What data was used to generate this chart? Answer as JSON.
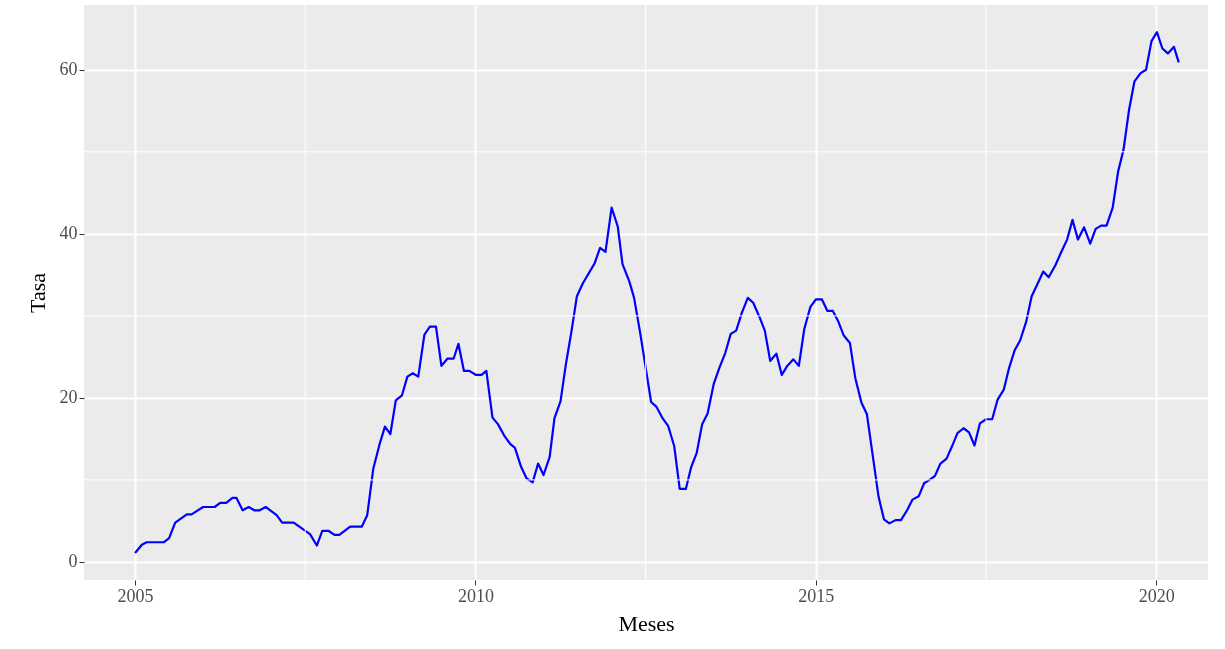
{
  "chart_data": {
    "type": "line",
    "xlabel": "Meses",
    "ylabel": "Tasa",
    "xlim": [
      2004.25,
      2020.76
    ],
    "ylim": [
      -2.2,
      67.9
    ],
    "xticks": [
      2005,
      2010,
      2015,
      2020
    ],
    "yticks": [
      0,
      20,
      40,
      60
    ],
    "grid": true,
    "line_style": "solid",
    "marker": "none",
    "series": [
      {
        "color": "#0000ff",
        "x": [
          2005.0,
          2005.1,
          2005.17,
          2005.42,
          2005.5,
          2005.59,
          2005.76,
          2005.83,
          2006.0,
          2006.17,
          2006.25,
          2006.34,
          2006.43,
          2006.49,
          2006.58,
          2006.67,
          2006.75,
          2006.83,
          2006.92,
          2007.08,
          2007.16,
          2007.33,
          2007.57,
          2007.67,
          2007.75,
          2007.84,
          2007.93,
          2008.0,
          2008.16,
          2008.33,
          2008.41,
          2008.5,
          2008.59,
          2008.67,
          2008.75,
          2008.83,
          2008.92,
          2009.0,
          2009.08,
          2009.16,
          2009.25,
          2009.33,
          2009.42,
          2009.5,
          2009.59,
          2009.68,
          2009.75,
          2009.83,
          2009.91,
          2010.01,
          2010.09,
          2010.16,
          2010.25,
          2010.33,
          2010.43,
          2010.51,
          2010.58,
          2010.67,
          2010.75,
          2010.84,
          2010.92,
          2011.0,
          2011.09,
          2011.16,
          2011.25,
          2011.33,
          2011.41,
          2011.49,
          2011.58,
          2011.75,
          2011.83,
          2011.91,
          2012.0,
          2012.09,
          2012.16,
          2012.26,
          2012.33,
          2012.42,
          2012.58,
          2012.66,
          2012.75,
          2012.83,
          2012.92,
          2013.0,
          2013.09,
          2013.17,
          2013.25,
          2013.33,
          2013.41,
          2013.5,
          2013.58,
          2013.67,
          2013.75,
          2013.83,
          2013.91,
          2014.0,
          2014.08,
          2014.17,
          2014.25,
          2014.33,
          2014.42,
          2014.5,
          2014.58,
          2014.67,
          2014.75,
          2014.83,
          2014.92,
          2015.0,
          2015.09,
          2015.17,
          2015.25,
          2015.33,
          2015.41,
          2015.5,
          2015.58,
          2015.67,
          2015.75,
          2015.83,
          2015.92,
          2016.0,
          2016.08,
          2016.17,
          2016.25,
          2016.34,
          2016.42,
          2016.51,
          2016.59,
          2016.67,
          2016.75,
          2016.83,
          2016.92,
          2017.0,
          2017.08,
          2017.17,
          2017.25,
          2017.33,
          2017.41,
          2017.5,
          2017.59,
          2017.67,
          2017.76,
          2017.84,
          2017.92,
          2018.0,
          2018.09,
          2018.17,
          2018.25,
          2018.34,
          2018.42,
          2018.52,
          2018.6,
          2018.69,
          2018.77,
          2018.85,
          2018.94,
          2019.03,
          2019.11,
          2019.19,
          2019.27,
          2019.36,
          2019.44,
          2019.52,
          2019.6,
          2019.68,
          2019.77,
          2019.85,
          2019.93,
          2020.01,
          2020.09,
          2020.17,
          2020.26,
          2020.33
        ],
        "values": [
          1.1,
          2.1,
          2.4,
          2.4,
          2.9,
          4.8,
          5.8,
          5.8,
          6.7,
          6.7,
          7.2,
          7.2,
          7.8,
          7.8,
          6.3,
          6.7,
          6.3,
          6.3,
          6.7,
          5.7,
          4.8,
          4.8,
          3.4,
          2.0,
          3.8,
          3.8,
          3.3,
          3.3,
          4.3,
          4.3,
          5.7,
          11.4,
          14.3,
          16.5,
          15.6,
          19.7,
          20.3,
          22.6,
          23.0,
          22.6,
          27.7,
          28.7,
          28.7,
          23.9,
          24.8,
          24.8,
          26.6,
          23.3,
          23.3,
          22.8,
          22.8,
          23.3,
          17.6,
          16.8,
          15.3,
          14.4,
          13.9,
          11.6,
          10.2,
          9.7,
          12.0,
          10.6,
          12.8,
          17.5,
          19.6,
          24.2,
          28.1,
          32.4,
          34.0,
          36.4,
          38.3,
          37.8,
          43.2,
          40.9,
          36.3,
          34.2,
          32.2,
          27.9,
          19.5,
          18.9,
          17.5,
          16.6,
          14.1,
          8.9,
          8.9,
          11.6,
          13.3,
          16.8,
          18.1,
          21.7,
          23.6,
          25.5,
          27.8,
          28.2,
          30.3,
          32.2,
          31.6,
          29.9,
          28.2,
          24.5,
          25.4,
          22.8,
          23.9,
          24.7,
          23.9,
          28.4,
          31.1,
          32.0,
          32.0,
          30.6,
          30.6,
          29.3,
          27.6,
          26.7,
          22.4,
          19.4,
          18.0,
          13.3,
          8.0,
          5.2,
          4.7,
          5.1,
          5.1,
          6.3,
          7.6,
          8.0,
          9.6,
          10.0,
          10.5,
          12.0,
          12.6,
          14.1,
          15.7,
          16.3,
          15.8,
          14.2,
          16.9,
          17.4,
          17.4,
          19.8,
          21.0,
          23.7,
          25.8,
          27.0,
          29.3,
          32.4,
          33.8,
          35.4,
          34.7,
          36.2,
          37.7,
          39.3,
          41.7,
          39.3,
          40.8,
          38.8,
          40.6,
          41.0,
          41.0,
          43.2,
          47.6,
          50.3,
          55.1,
          58.6,
          59.6,
          60.0,
          63.5,
          64.6,
          62.6,
          62.0,
          62.8,
          60.9
        ]
      }
    ]
  }
}
